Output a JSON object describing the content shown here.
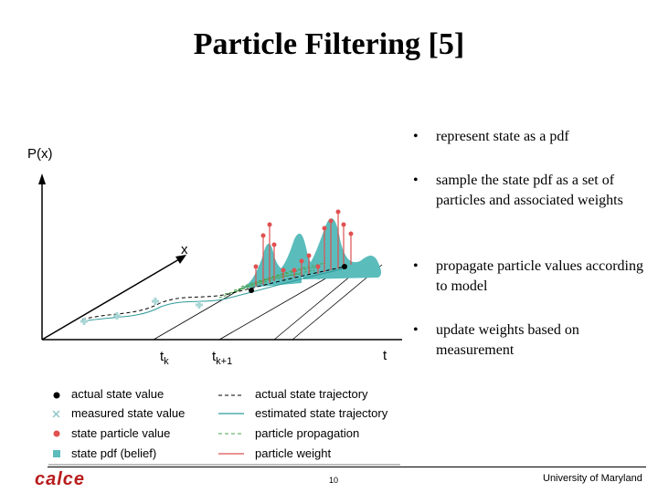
{
  "title": "Particle Filtering [5]",
  "bullets": [
    "represent state as a pdf",
    "sample the state pdf as a set of particles and associated weights",
    "propagate particle values according to model",
    "update weights based on measurement"
  ],
  "bullet_glyph": "•",
  "axes": {
    "y_label": "P(x)",
    "x_label": "x",
    "t_label": "t",
    "tk_label": "t",
    "tk_sub": "k",
    "tk1_label": "t",
    "tk1_sub": "k+1"
  },
  "legend": {
    "left": [
      {
        "icon": "black-dot",
        "label": "actual state value"
      },
      {
        "icon": "x-mark",
        "label": "measured state value"
      },
      {
        "icon": "red-dot",
        "label": "state particle value"
      },
      {
        "icon": "teal-square",
        "label": "state pdf (belief)"
      }
    ],
    "right": [
      {
        "icon": "dashed-black-line",
        "label": "actual state trajectory"
      },
      {
        "icon": "teal-line",
        "label": "estimated state trajectory"
      },
      {
        "icon": "dashed-green-line",
        "label": "particle propagation"
      },
      {
        "icon": "red-line",
        "label": "particle weight"
      }
    ]
  },
  "footer": {
    "logo": "calce",
    "page": "10",
    "university": "University of Maryland"
  },
  "colors": {
    "pdf": "#5bbcbc",
    "particle": "#e05050",
    "estimate": "#2f9a9a",
    "propagation": "#49a049"
  }
}
